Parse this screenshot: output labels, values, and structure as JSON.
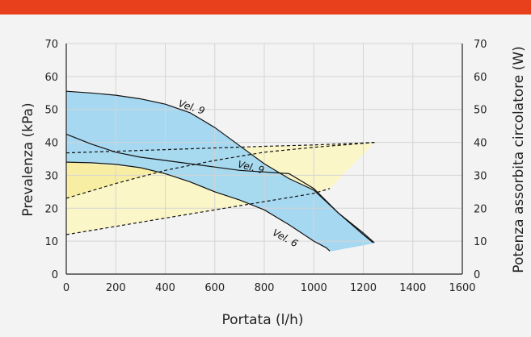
{
  "chart_data": {
    "type": "line",
    "xlabel": "Portata (l/h)",
    "ylabel_left": "Prevalenza (kPa)",
    "ylabel_right": "Potenza assorbita circolatore (W)",
    "xlim": [
      0,
      1600
    ],
    "ylim": [
      0,
      70
    ],
    "x_ticks": [
      "0",
      "200",
      "400",
      "600",
      "800",
      "1000",
      "1200",
      "1400",
      "1600"
    ],
    "y_ticks": [
      "0",
      "10",
      "20",
      "30",
      "40",
      "50",
      "60",
      "70"
    ],
    "grid": true,
    "colors": {
      "bar": "#e8401c",
      "head_fill": "#9fd6f2",
      "power_fill": "#fbf6c8",
      "power_fill_strong": "#f7ec9a",
      "line": "#111111",
      "grid": "#d4d4d4",
      "background": "#f4f3f3"
    },
    "series": [
      {
        "name": "Vel. 9",
        "kind": "prevalenza",
        "style": "solid",
        "x": [
          0,
          100,
          200,
          300,
          400,
          500,
          600,
          700,
          800,
          900,
          1000,
          1100,
          1200,
          1245
        ],
        "y": [
          55.5,
          55,
          54.3,
          53.2,
          51.6,
          49,
          44.5,
          39,
          33.5,
          29,
          25.5,
          18.5,
          12.5,
          9.5
        ]
      },
      {
        "name": "Vel. 6",
        "kind": "prevalenza",
        "style": "solid",
        "x": [
          0,
          100,
          200,
          300,
          400,
          500,
          600,
          700,
          800,
          900,
          950,
          1000,
          1050,
          1065
        ],
        "y": [
          34,
          33.8,
          33.3,
          32.3,
          30.5,
          28,
          25,
          22.5,
          19.5,
          15,
          12.5,
          10,
          8,
          7
        ]
      },
      {
        "name": "",
        "kind": "prevalenza",
        "style": "solid",
        "x": [
          0,
          100,
          200,
          300,
          400,
          500,
          600,
          700,
          800,
          900,
          1000,
          1100,
          1200,
          1240
        ],
        "y": [
          42.5,
          39.5,
          37,
          35.5,
          34.5,
          33.5,
          32.5,
          31.5,
          31,
          30.5,
          26,
          18.5,
          12,
          9.5
        ]
      },
      {
        "name": "Vel. 9",
        "kind": "potenza",
        "style": "dashed",
        "x": [
          0,
          200,
          400,
          600,
          800,
          1000,
          1200,
          1245
        ],
        "y": [
          36.8,
          37.3,
          37.8,
          38.3,
          38.8,
          39.2,
          39.8,
          40
        ]
      },
      {
        "name": "",
        "kind": "potenza",
        "style": "dashed",
        "x": [
          0,
          200,
          400,
          600,
          800,
          1000,
          1200,
          1245
        ],
        "y": [
          23,
          27.5,
          31.5,
          34.5,
          37,
          38.5,
          39.7,
          40
        ]
      },
      {
        "name": "",
        "kind": "potenza",
        "style": "dashed",
        "x": [
          0,
          200,
          400,
          600,
          800,
          1000,
          1065
        ],
        "y": [
          12,
          14.5,
          17,
          19.5,
          22,
          24.5,
          26
        ]
      }
    ],
    "labels": [
      {
        "text": "Vel. 9",
        "x": 450,
        "y": 51,
        "rot": 18
      },
      {
        "text": "Vel. 9",
        "x": 690,
        "y": 32.5,
        "rot": 14
      },
      {
        "text": "Vel. 6",
        "x": 830,
        "y": 12,
        "rot": 28
      }
    ]
  }
}
